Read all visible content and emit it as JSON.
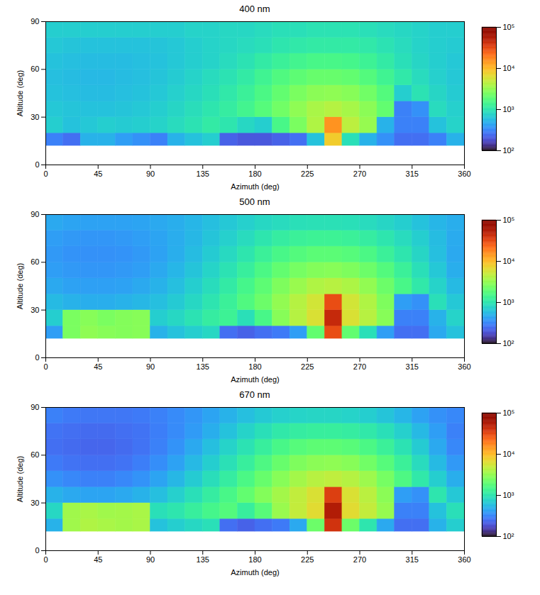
{
  "chart_data": [
    {
      "type": "heatmap",
      "title": "400 nm",
      "x_label": "Azimuth (deg)",
      "y_label": "Altitude (deg)",
      "xlim": [
        0,
        360
      ],
      "xticks": [
        0,
        45,
        90,
        135,
        180,
        225,
        270,
        315,
        360
      ],
      "ylim": [
        0,
        90
      ],
      "yticks": [
        0,
        30,
        60,
        90
      ],
      "log": true,
      "azimuth_bins": [
        0,
        15,
        30,
        45,
        60,
        75,
        90,
        105,
        120,
        135,
        150,
        165,
        180,
        195,
        210,
        225,
        240,
        255,
        270,
        285,
        300,
        315,
        330,
        345,
        360
      ],
      "altitude_bins": [
        12,
        20,
        30,
        40,
        50,
        60,
        70,
        80,
        90
      ],
      "cells": [
        [
          300,
          250,
          500,
          500,
          400,
          350,
          300,
          500,
          600,
          700,
          220,
          200,
          200,
          220,
          250,
          600,
          8000,
          900,
          500,
          350,
          250,
          250,
          300,
          500
        ],
        [
          700,
          600,
          650,
          700,
          680,
          700,
          750,
          850,
          950,
          1100,
          1000,
          800,
          700,
          1500,
          2500,
          4000,
          15000,
          4500,
          3200,
          500,
          300,
          300,
          600,
          750
        ],
        [
          650,
          620,
          600,
          600,
          620,
          650,
          700,
          780,
          880,
          1000,
          1150,
          1400,
          1750,
          2300,
          3000,
          3800,
          4200,
          3700,
          2900,
          2000,
          300,
          350,
          850,
          720
        ],
        [
          600,
          580,
          560,
          560,
          580,
          600,
          650,
          720,
          800,
          900,
          1050,
          1250,
          1550,
          2000,
          2500,
          2900,
          3000,
          2800,
          2300,
          1700,
          700,
          950,
          780,
          680
        ],
        [
          580,
          560,
          540,
          540,
          560,
          580,
          620,
          680,
          750,
          850,
          950,
          1100,
          1350,
          1650,
          1900,
          2100,
          2100,
          2000,
          1700,
          1350,
          1050,
          850,
          720,
          650
        ],
        [
          600,
          580,
          560,
          560,
          560,
          580,
          600,
          650,
          700,
          750,
          850,
          950,
          1100,
          1250,
          1400,
          1500,
          1500,
          1450,
          1300,
          1100,
          900,
          780,
          700,
          650
        ],
        [
          650,
          620,
          600,
          600,
          600,
          600,
          620,
          650,
          700,
          750,
          800,
          850,
          900,
          1000,
          1050,
          1100,
          1100,
          1100,
          1050,
          950,
          850,
          750,
          700,
          680
        ],
        [
          700,
          700,
          700,
          700,
          700,
          700,
          700,
          700,
          750,
          750,
          800,
          800,
          850,
          900,
          900,
          950,
          950,
          950,
          900,
          850,
          800,
          750,
          700,
          700
        ]
      ],
      "colorbar": {
        "range": [
          100,
          100000
        ],
        "ticks": [
          {
            "value": 100,
            "label": "10²"
          },
          {
            "value": 1000,
            "label": "10³"
          },
          {
            "value": 10000,
            "label": "10⁴"
          },
          {
            "value": 100000,
            "label": "10⁵"
          }
        ]
      }
    },
    {
      "type": "heatmap",
      "title": "500 nm",
      "x_label": "Azimuth (deg)",
      "y_label": "Altitude (deg)",
      "xlim": [
        0,
        360
      ],
      "xticks": [
        0,
        45,
        90,
        135,
        180,
        225,
        270,
        315,
        360
      ],
      "ylim": [
        0,
        90
      ],
      "yticks": [
        0,
        30,
        60,
        90
      ],
      "log": true,
      "azimuth_bins": [
        0,
        15,
        30,
        45,
        60,
        75,
        90,
        105,
        120,
        135,
        150,
        165,
        180,
        195,
        210,
        225,
        240,
        255,
        270,
        285,
        300,
        315,
        330,
        345,
        360
      ],
      "altitude_bins": [
        12,
        20,
        30,
        40,
        50,
        60,
        70,
        80,
        90
      ],
      "cells": [
        [
          400,
          2500,
          3000,
          2800,
          2700,
          2800,
          500,
          600,
          700,
          800,
          250,
          220,
          250,
          280,
          400,
          2000,
          30000,
          2000,
          900,
          400,
          250,
          250,
          450,
          600
        ],
        [
          700,
          2500,
          2800,
          2500,
          2700,
          2800,
          700,
          800,
          950,
          1150,
          1300,
          900,
          1500,
          2800,
          4200,
          6000,
          45000,
          6000,
          4300,
          2800,
          300,
          300,
          500,
          750
        ],
        [
          550,
          500,
          480,
          480,
          500,
          530,
          580,
          670,
          800,
          980,
          1250,
          1650,
          2200,
          3100,
          4200,
          5500,
          30000,
          5500,
          4000,
          2600,
          400,
          350,
          900,
          650
        ],
        [
          450,
          420,
          410,
          410,
          420,
          450,
          500,
          580,
          700,
          860,
          1100,
          1450,
          1900,
          2600,
          3300,
          4000,
          4300,
          3900,
          3100,
          2200,
          1500,
          1050,
          750,
          550
        ],
        [
          400,
          380,
          370,
          370,
          380,
          400,
          450,
          520,
          620,
          760,
          950,
          1200,
          1550,
          2000,
          2400,
          2700,
          2800,
          2600,
          2200,
          1700,
          1250,
          900,
          650,
          480
        ],
        [
          380,
          360,
          350,
          350,
          360,
          380,
          420,
          480,
          560,
          680,
          820,
          1000,
          1250,
          1500,
          1700,
          1850,
          1850,
          1750,
          1550,
          1250,
          1000,
          780,
          580,
          450
        ],
        [
          400,
          380,
          370,
          370,
          380,
          400,
          430,
          470,
          530,
          620,
          720,
          850,
          1000,
          1150,
          1250,
          1300,
          1300,
          1250,
          1150,
          1000,
          850,
          700,
          560,
          460
        ],
        [
          450,
          430,
          420,
          420,
          420,
          430,
          450,
          480,
          520,
          580,
          650,
          720,
          800,
          850,
          900,
          920,
          920,
          900,
          850,
          780,
          700,
          600,
          520,
          480
        ]
      ],
      "colorbar": {
        "range": [
          100,
          100000
        ],
        "ticks": [
          {
            "value": 100,
            "label": "10²"
          },
          {
            "value": 1000,
            "label": "10³"
          },
          {
            "value": 10000,
            "label": "10⁴"
          },
          {
            "value": 100000,
            "label": "10⁵"
          }
        ]
      }
    },
    {
      "type": "heatmap",
      "title": "670 nm",
      "x_label": "Azimuth (deg)",
      "y_label": "Altitude (deg)",
      "xlim": [
        0,
        360
      ],
      "xticks": [
        0,
        45,
        90,
        135,
        180,
        225,
        270,
        315,
        360
      ],
      "ylim": [
        0,
        90
      ],
      "yticks": [
        0,
        30,
        60,
        90
      ],
      "log": true,
      "azimuth_bins": [
        0,
        15,
        30,
        45,
        60,
        75,
        90,
        105,
        120,
        135,
        150,
        165,
        180,
        195,
        210,
        225,
        240,
        255,
        270,
        285,
        300,
        315,
        330,
        345,
        360
      ],
      "altitude_bins": [
        12,
        20,
        30,
        40,
        50,
        60,
        70,
        80,
        90
      ],
      "cells": [
        [
          500,
          3500,
          4000,
          3800,
          3600,
          3800,
          600,
          700,
          800,
          900,
          250,
          220,
          250,
          280,
          450,
          2200,
          40000,
          2200,
          1000,
          450,
          250,
          250,
          500,
          700
        ],
        [
          800,
          3500,
          3800,
          3500,
          3600,
          3800,
          900,
          1000,
          1200,
          1450,
          1700,
          1200,
          1800,
          3300,
          4800,
          6500,
          55000,
          6500,
          4800,
          3200,
          300,
          300,
          600,
          900
        ],
        [
          500,
          450,
          430,
          430,
          450,
          500,
          580,
          720,
          900,
          1150,
          1500,
          2000,
          2700,
          3600,
          4700,
          6000,
          35000,
          6000,
          4400,
          2900,
          400,
          350,
          1000,
          650
        ],
        [
          350,
          320,
          300,
          300,
          320,
          360,
          430,
          530,
          680,
          880,
          1150,
          1550,
          2100,
          2800,
          3600,
          4300,
          4600,
          4200,
          3400,
          2400,
          1600,
          1050,
          700,
          480
        ],
        [
          280,
          260,
          250,
          250,
          260,
          290,
          340,
          420,
          540,
          700,
          920,
          1200,
          1600,
          2100,
          2600,
          2900,
          3000,
          2800,
          2300,
          1750,
          1250,
          850,
          550,
          380
        ],
        [
          250,
          240,
          230,
          230,
          240,
          260,
          300,
          360,
          450,
          580,
          750,
          950,
          1200,
          1500,
          1750,
          1900,
          1900,
          1800,
          1550,
          1250,
          950,
          680,
          450,
          320
        ],
        [
          260,
          250,
          240,
          240,
          250,
          260,
          290,
          330,
          390,
          480,
          600,
          750,
          900,
          1050,
          1150,
          1200,
          1200,
          1150,
          1050,
          900,
          720,
          540,
          400,
          300
        ],
        [
          300,
          280,
          270,
          270,
          270,
          280,
          300,
          330,
          370,
          430,
          500,
          580,
          660,
          720,
          760,
          780,
          780,
          750,
          700,
          620,
          520,
          420,
          350,
          320
        ]
      ],
      "colorbar": {
        "range": [
          100,
          100000
        ],
        "ticks": [
          {
            "value": 100,
            "label": "10²"
          },
          {
            "value": 1000,
            "label": "10³"
          },
          {
            "value": 10000,
            "label": "10⁴"
          },
          {
            "value": 100000,
            "label": "10⁵"
          }
        ]
      }
    }
  ]
}
